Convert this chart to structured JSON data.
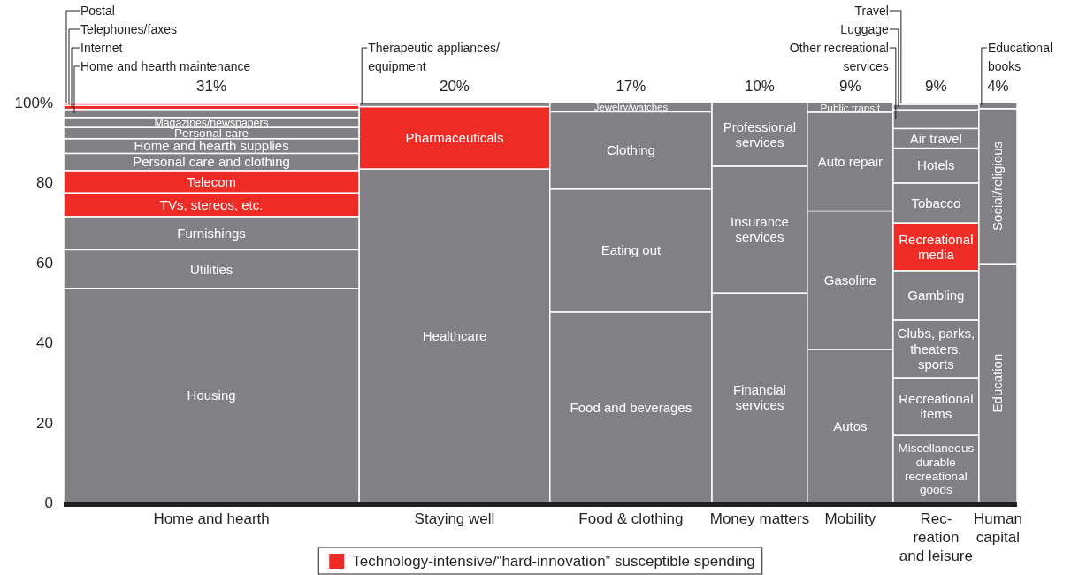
{
  "chart_data": {
    "type": "bar",
    "stacked": true,
    "categories": [
      "Home and hearth",
      "Staying well",
      "Food & clothing",
      "Money matters",
      "Mobility",
      "Rec-\nreation\nand leisure",
      "Human\ncapital"
    ],
    "annotations": [
      "31%",
      "20%",
      "17%",
      "10%",
      "9%",
      "9%",
      "4%"
    ],
    "ylim": [
      0,
      100
    ],
    "yticks": [
      0,
      20,
      40,
      60,
      80,
      {
        "value": 100,
        "label": "100%"
      }
    ],
    "legend_title": "Technology-intensive/“hard-innovation” susceptible spending",
    "series": [
      {
        "name": "Housing",
        "color": "#808085",
        "values": [
          53.5,
          null,
          null,
          null,
          null,
          null,
          null
        ]
      },
      {
        "name": "Utilities",
        "color": "#808085",
        "values": [
          9.7,
          null,
          null,
          null,
          null,
          null,
          null
        ]
      },
      {
        "name": "Furnishings",
        "color": "#808085",
        "values": [
          8.3,
          null,
          null,
          null,
          null,
          null,
          null
        ]
      },
      {
        "name": "TVs, stereos, etc.",
        "color": "#ee2b24",
        "values": [
          5.9,
          null,
          null,
          null,
          null,
          null,
          null
        ]
      },
      {
        "name": "Telecom",
        "color": "#ee2b24",
        "values": [
          5.6,
          null,
          null,
          null,
          null,
          null,
          null
        ]
      },
      {
        "name": "Personal care and clothing",
        "color": "#808085",
        "values": [
          4.3,
          null,
          null,
          null,
          null,
          null,
          null
        ]
      },
      {
        "name": "Home and hearth supplies",
        "color": "#808085",
        "values": [
          3.7,
          null,
          null,
          null,
          null,
          null,
          null
        ]
      },
      {
        "name": "Personal care",
        "color": "#808085",
        "values": [
          2.8,
          null,
          null,
          null,
          null,
          null,
          null
        ]
      },
      {
        "name": "Magazines/newspapers",
        "color": "#808085",
        "values": [
          2.5,
          null,
          null,
          null,
          null,
          null,
          null
        ]
      },
      {
        "name": "Home and hearth maintenance",
        "color": "#808085",
        "values": [
          2.0,
          null,
          null,
          null,
          null,
          null,
          null
        ]
      },
      {
        "name": "Internet",
        "color": "#ee2b24",
        "values": [
          1.0,
          null,
          null,
          null,
          null,
          null,
          null
        ]
      },
      {
        "name": "Telephones/faxes",
        "color": "#ee2b24",
        "values": [
          0.5,
          null,
          null,
          null,
          null,
          null,
          null
        ]
      },
      {
        "name": "Postal",
        "color": "#808085",
        "values": [
          0.2,
          null,
          null,
          null,
          null,
          null,
          null
        ]
      },
      {
        "name": "Healthcare",
        "color": "#808085",
        "values": [
          null,
          83.4,
          null,
          null,
          null,
          null,
          null
        ]
      },
      {
        "name": "Pharmaceuticals",
        "color": "#ee2b24",
        "values": [
          null,
          15.6,
          null,
          null,
          null,
          null,
          null
        ]
      },
      {
        "name": "Therapeutic appliances/equipment",
        "color": "#808085",
        "values": [
          null,
          1.0,
          null,
          null,
          null,
          null,
          null
        ]
      },
      {
        "name": "Food and beverages",
        "color": "#808085",
        "values": [
          null,
          null,
          47.6,
          null,
          null,
          null,
          null
        ]
      },
      {
        "name": "Eating out",
        "color": "#808085",
        "values": [
          null,
          null,
          30.8,
          null,
          null,
          null,
          null
        ]
      },
      {
        "name": "Clothing",
        "color": "#808085",
        "values": [
          null,
          null,
          19.3,
          null,
          null,
          null,
          null
        ]
      },
      {
        "name": "Jewelry/watches",
        "color": "#808085",
        "values": [
          null,
          null,
          2.3,
          null,
          null,
          null,
          null
        ]
      },
      {
        "name": "Financial services",
        "color": "#808085",
        "values": [
          null,
          null,
          null,
          52.4,
          null,
          null,
          null
        ]
      },
      {
        "name": "Insurance services",
        "color": "#808085",
        "values": [
          null,
          null,
          null,
          31.7,
          null,
          null,
          null
        ]
      },
      {
        "name": "Professional services",
        "color": "#808085",
        "values": [
          null,
          null,
          null,
          15.9,
          null,
          null,
          null
        ]
      },
      {
        "name": "Autos",
        "color": "#808085",
        "values": [
          null,
          null,
          null,
          null,
          38.3,
          null,
          null
        ]
      },
      {
        "name": "Gasoline",
        "color": "#808085",
        "values": [
          null,
          null,
          null,
          null,
          34.6,
          null,
          null
        ]
      },
      {
        "name": "Auto repair",
        "color": "#808085",
        "values": [
          null,
          null,
          null,
          null,
          24.7,
          null,
          null
        ]
      },
      {
        "name": "Public transit",
        "color": "#808085",
        "values": [
          null,
          null,
          null,
          null,
          2.4,
          null,
          null
        ]
      },
      {
        "name": "Miscellaneous durable recreational goods",
        "color": "#808085",
        "values": [
          null,
          null,
          null,
          null,
          null,
          16.8,
          null
        ]
      },
      {
        "name": "Recreational items",
        "color": "#808085",
        "values": [
          null,
          null,
          null,
          null,
          null,
          14.4,
          null
        ]
      },
      {
        "name": "Clubs, parks, theaters, sports",
        "color": "#808085",
        "values": [
          null,
          null,
          null,
          null,
          null,
          14.4,
          null
        ]
      },
      {
        "name": "Gambling",
        "color": "#808085",
        "values": [
          null,
          null,
          null,
          null,
          null,
          12.4,
          null
        ]
      },
      {
        "name": "Recreational media",
        "color": "#ee2b24",
        "values": [
          null,
          null,
          null,
          null,
          null,
          11.9,
          null
        ]
      },
      {
        "name": "Tobacco",
        "color": "#808085",
        "values": [
          null,
          null,
          null,
          null,
          null,
          10.0,
          null
        ]
      },
      {
        "name": "Hotels",
        "color": "#808085",
        "values": [
          null,
          null,
          null,
          null,
          null,
          8.7,
          null
        ]
      },
      {
        "name": "Air travel",
        "color": "#808085",
        "values": [
          null,
          null,
          null,
          null,
          null,
          4.9,
          null
        ]
      },
      {
        "name": "Other recreational services",
        "color": "#808085",
        "values": [
          null,
          null,
          null,
          null,
          null,
          4.7,
          null
        ]
      },
      {
        "name": "Luggage",
        "color": "#808085",
        "values": [
          null,
          null,
          null,
          null,
          null,
          1.4,
          null
        ]
      },
      {
        "name": "Travel",
        "color": "#808085",
        "values": [
          null,
          null,
          null,
          null,
          null,
          0.4,
          null
        ]
      },
      {
        "name": "Education",
        "color": "#808085",
        "values": [
          null,
          null,
          null,
          null,
          null,
          null,
          59.7
        ]
      },
      {
        "name": "Social/religious",
        "color": "#808085",
        "values": [
          null,
          null,
          null,
          null,
          null,
          null,
          38.8
        ]
      },
      {
        "name": "Educational books",
        "color": "#808085",
        "values": [
          null,
          null,
          null,
          null,
          null,
          null,
          1.5
        ]
      }
    ]
  }
}
